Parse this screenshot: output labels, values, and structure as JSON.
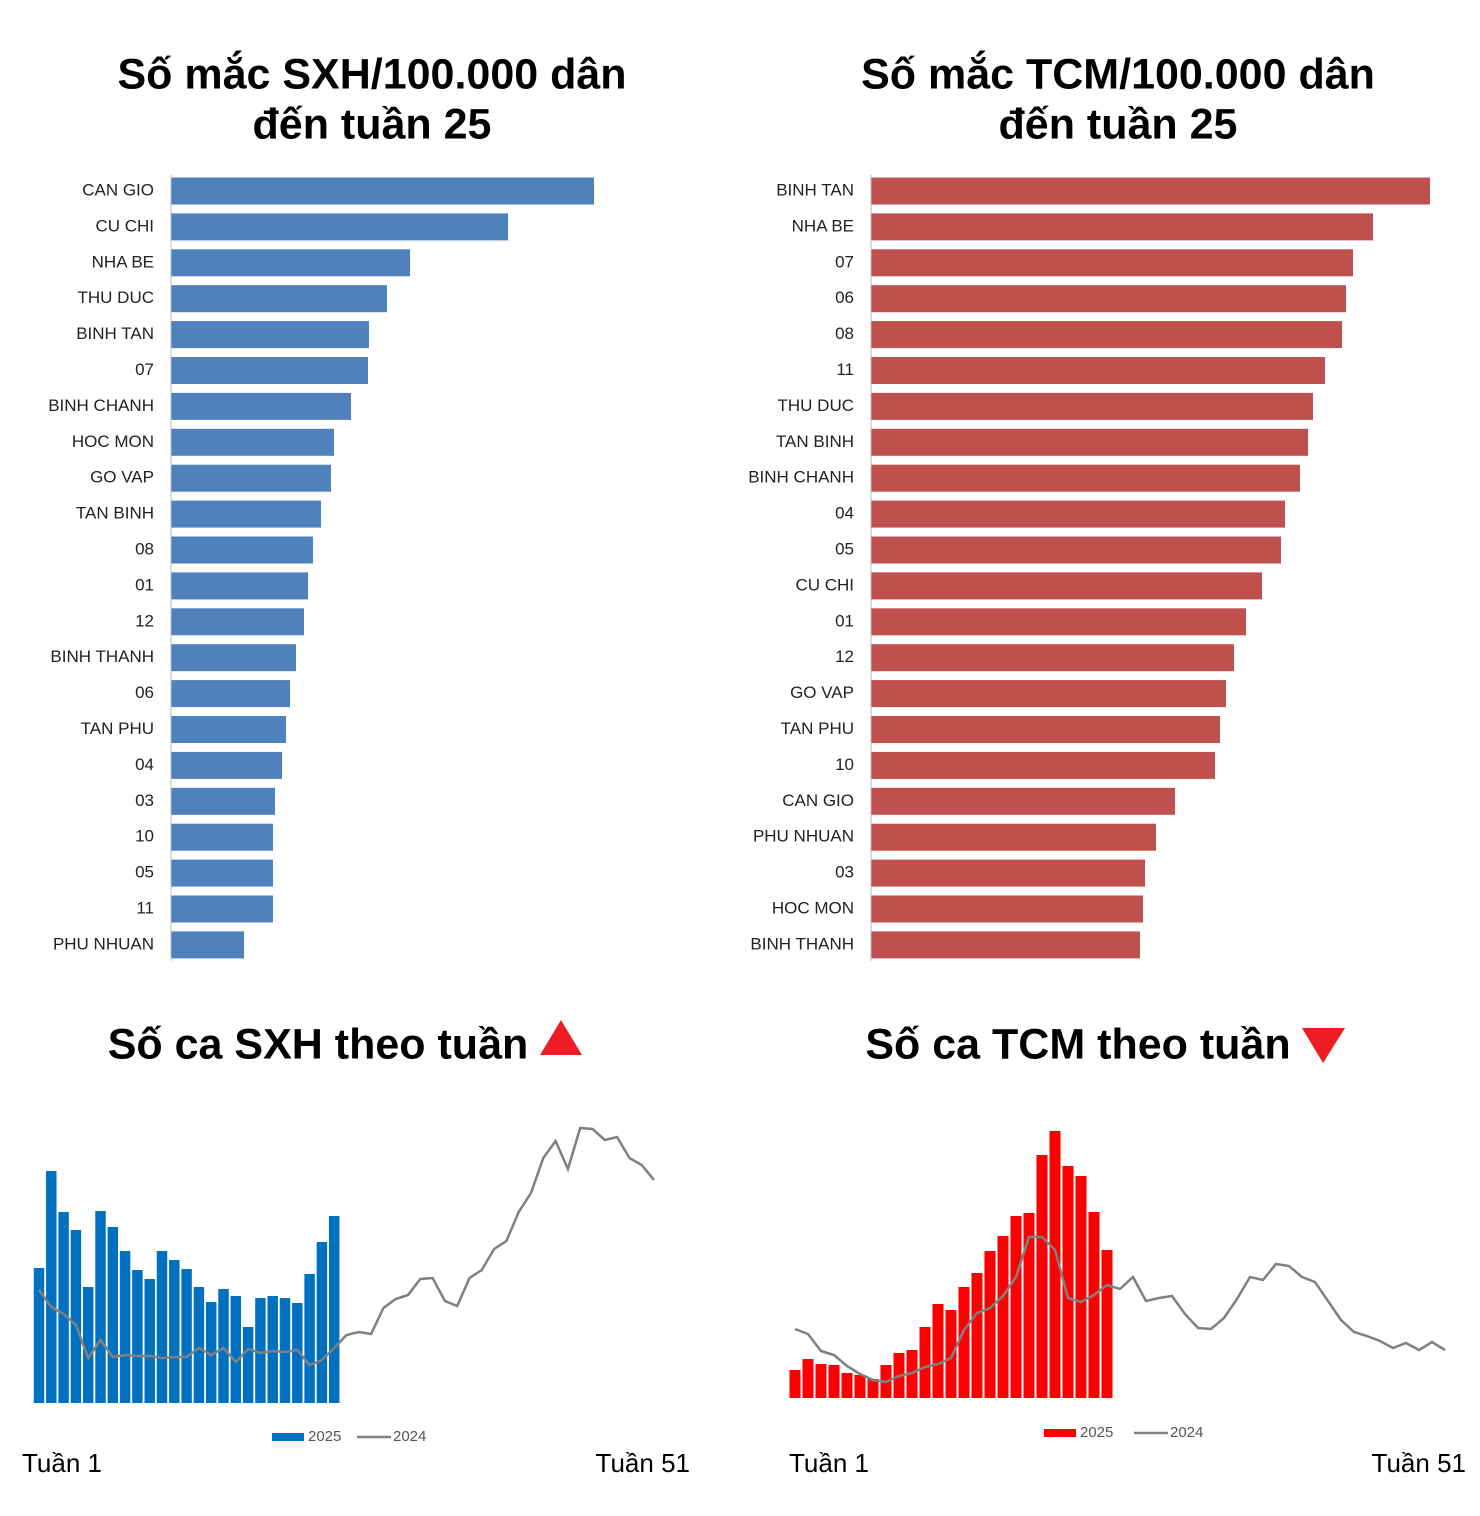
{
  "chart_data": [
    {
      "type": "barh",
      "title": [
        "Số mắc SXH/100.000 dân",
        "đến tuần 25"
      ],
      "categories": [
        "CAN GIO",
        "CU CHI",
        "NHA BE",
        "THU DUC",
        "BINH TAN",
        "07",
        "BINH CHANH",
        "HOC MON",
        "GO VAP",
        "TAN BINH",
        "08",
        "01",
        "12",
        "BINH THANH",
        "06",
        "TAN PHU",
        "04",
        "03",
        "10",
        "05",
        "11",
        "PHU NHUAN"
      ],
      "values": [
        423,
        337,
        239,
        216,
        198,
        197,
        180,
        163,
        160,
        150,
        142,
        137,
        133,
        125,
        119,
        115,
        111,
        104,
        102,
        102,
        102,
        73
      ],
      "color": "#4f81bd",
      "xlim": [
        0,
        430
      ]
    },
    {
      "type": "barh",
      "title": [
        "Số mắc TCM/100.000 dân",
        "đến tuần 25"
      ],
      "categories": [
        "BINH TAN",
        "NHA BE",
        "07",
        "06",
        "08",
        "11",
        "THU DUC",
        "TAN BINH",
        "BINH CHANH",
        "04",
        "05",
        "CU CHI",
        "01",
        "12",
        "GO VAP",
        "TAN PHU",
        "10",
        "CAN GIO",
        "PHU NHUAN",
        "03",
        "HOC MON",
        "BINH THANH"
      ],
      "values": [
        559,
        502,
        482,
        475,
        471,
        454,
        442,
        437,
        429,
        414,
        410,
        391,
        375,
        363,
        355,
        349,
        344,
        304,
        285,
        274,
        272,
        269
      ],
      "color": "#c0504d",
      "xlim": [
        0,
        560
      ]
    },
    {
      "type": "bar",
      "title": "Số ca SXH theo tuần",
      "trend": "up",
      "categories": [
        "Tuần 1",
        null,
        null,
        null,
        null,
        null,
        null,
        null,
        null,
        null,
        null,
        null,
        null,
        null,
        null,
        null,
        null,
        null,
        null,
        null,
        null,
        null,
        null,
        null,
        null,
        null,
        null,
        null,
        null,
        null,
        null,
        null,
        null,
        null,
        null,
        null,
        null,
        null,
        null,
        null,
        null,
        null,
        null,
        null,
        null,
        null,
        null,
        null,
        null,
        null,
        "Tuần 51"
      ],
      "series": [
        {
          "name": "2025",
          "color": "#0070c0",
          "values": [
            135,
            232,
            191,
            173,
            116,
            192,
            176,
            152,
            133,
            124,
            152,
            143,
            134,
            116,
            101,
            114,
            107,
            76,
            105,
            107,
            105,
            100,
            129,
            161,
            187,
            null,
            null,
            null,
            null,
            null,
            null,
            null,
            null,
            null,
            null,
            null,
            null,
            null,
            null,
            null,
            null,
            null,
            null,
            null,
            null,
            null,
            null,
            null,
            null,
            null,
            null
          ]
        },
        {
          "name": "2024",
          "color": "#808080",
          "type": "line",
          "values": [
            113,
            96,
            89,
            78,
            45,
            63,
            46,
            48,
            47,
            47,
            45,
            46,
            46,
            55,
            48,
            55,
            41,
            54,
            50,
            52,
            51,
            53,
            38,
            43,
            55,
            68,
            71,
            69,
            95,
            104,
            108,
            124,
            125,
            102,
            97,
            125,
            133,
            154,
            162,
            191,
            210,
            245,
            262,
            234,
            275,
            274,
            263,
            266,
            245,
            238,
            223
          ]
        }
      ],
      "ylim": [
        0,
        290
      ],
      "legend": "bottom"
    },
    {
      "type": "bar",
      "title": "Số ca TCM theo tuần",
      "trend": "down",
      "categories": [
        "Tuần 1",
        null,
        null,
        null,
        null,
        null,
        null,
        null,
        null,
        null,
        null,
        null,
        null,
        null,
        null,
        null,
        null,
        null,
        null,
        null,
        null,
        null,
        null,
        null,
        null,
        null,
        null,
        null,
        null,
        null,
        null,
        null,
        null,
        null,
        null,
        null,
        null,
        null,
        null,
        null,
        null,
        null,
        null,
        null,
        null,
        null,
        null,
        null,
        null,
        null,
        "Tuần 51"
      ],
      "series": [
        {
          "name": "2025",
          "color": "#ff0000",
          "values": [
            28,
            39,
            34,
            33,
            25,
            23,
            19,
            33,
            45,
            48,
            71,
            94,
            88,
            111,
            125,
            147,
            162,
            182,
            185,
            243,
            267,
            232,
            222,
            186,
            148,
            null,
            null,
            null,
            null,
            null,
            null,
            null,
            null,
            null,
            null,
            null,
            null,
            null,
            null,
            null,
            null,
            null,
            null,
            null,
            null,
            null,
            null,
            null,
            null,
            null,
            null
          ]
        },
        {
          "name": "2024",
          "color": "#808080",
          "type": "line",
          "values": [
            69,
            64,
            47,
            43,
            32,
            24,
            18,
            16,
            22,
            25,
            31,
            34,
            40,
            68,
            85,
            90,
            102,
            121,
            161,
            161,
            148,
            100,
            96,
            103,
            113,
            109,
            121,
            97,
            100,
            102,
            84,
            70,
            69,
            80,
            99,
            121,
            118,
            134,
            132,
            121,
            116,
            97,
            78,
            66,
            62,
            57,
            50,
            55,
            48,
            56,
            48
          ]
        }
      ],
      "ylim": [
        0,
        280
      ],
      "legend": "bottom"
    }
  ]
}
